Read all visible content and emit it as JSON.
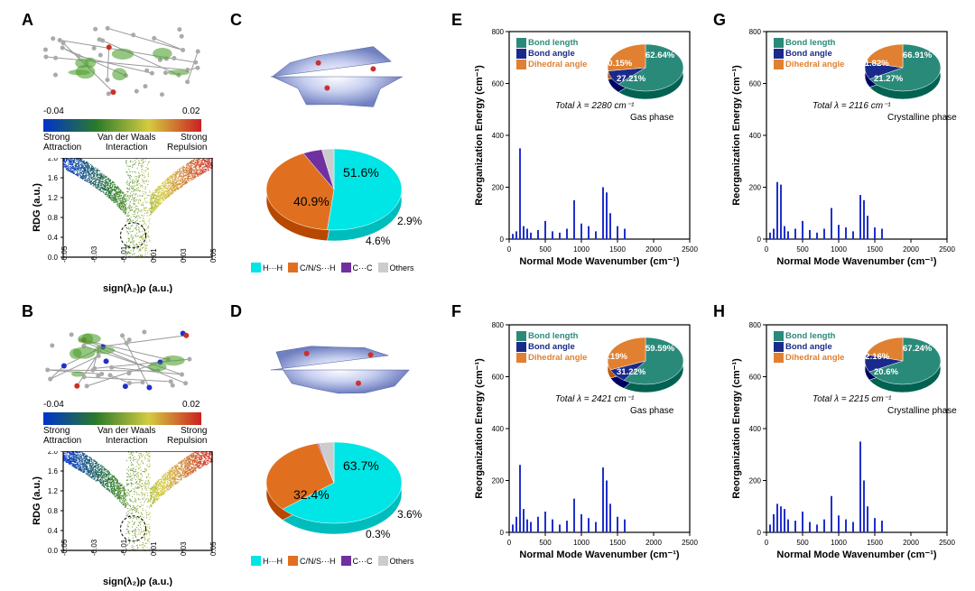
{
  "labels": {
    "A": "A",
    "B": "B",
    "C": "C",
    "D": "D",
    "E": "E",
    "F": "F",
    "G": "G",
    "H": "H"
  },
  "panelAB": {
    "colorbar_min": "-0.04",
    "colorbar_max": "0.02",
    "cb_l": "Strong\nAttraction",
    "cb_m": "Van der Waals\nInteraction",
    "cb_r": "Strong\nRepulsion",
    "y_label": "RDG (a.u.)",
    "x_label": "sign(λ₂)ρ (a.u.)",
    "x_ticks": [
      "-0.05",
      "-0.03",
      "-0.01",
      "0.01",
      "0.03",
      "0.05"
    ],
    "y_ticks": [
      "0.0",
      "0.4",
      "0.8",
      "1.2",
      "1.6",
      "2.0"
    ],
    "ylim": [
      0,
      2.0
    ],
    "xlim": [
      -0.05,
      0.05
    ]
  },
  "panelC": {
    "slices": [
      {
        "pct": 51.6,
        "color": "#00e5e5",
        "label": "H···H"
      },
      {
        "pct": 40.9,
        "color": "#e07020",
        "label": "C/N/S···H"
      },
      {
        "pct": 4.6,
        "color": "#7030a0",
        "label": "C···C"
      },
      {
        "pct": 2.9,
        "color": "#cccccc",
        "label": "Others"
      }
    ],
    "labels_shown": [
      "51.6%",
      "40.9%",
      "4.6%",
      "2.9%"
    ]
  },
  "panelD": {
    "slices": [
      {
        "pct": 63.7,
        "color": "#00e5e5",
        "label": "H···H"
      },
      {
        "pct": 32.4,
        "color": "#e07020",
        "label": "C/N/S···H"
      },
      {
        "pct": 0.3,
        "color": "#7030a0",
        "label": "C···C"
      },
      {
        "pct": 3.6,
        "color": "#cccccc",
        "label": "Others"
      }
    ],
    "labels_shown": [
      "63.7%",
      "32.4%",
      "0.3%",
      "3.6%"
    ]
  },
  "contact_legend": [
    {
      "color": "#00e5e5",
      "label": "H···H"
    },
    {
      "color": "#e07020",
      "label": "C/N/S···H"
    },
    {
      "color": "#7030a0",
      "label": "C···C"
    },
    {
      "color": "#cccccc",
      "label": "Others"
    }
  ],
  "reorg_axes": {
    "x_label": "Normal Mode Wavenumber (cm⁻¹)",
    "y_label": "Reorganization Energy (cm⁻¹)",
    "x_ticks": [
      "0",
      "500",
      "1000",
      "1500",
      "2000",
      "2500"
    ],
    "y_ticks": [
      "0",
      "200",
      "400",
      "600",
      "800"
    ],
    "xlim": [
      0,
      2500
    ],
    "ylim": [
      0,
      800
    ]
  },
  "reorg_legend": [
    {
      "color": "#2a8a7a",
      "label": "Bond length"
    },
    {
      "color": "#1a2a8a",
      "label": "Bond angle"
    },
    {
      "color": "#e08030",
      "label": "Dihedral angle"
    }
  ],
  "panelE": {
    "phase": "Gas phase",
    "total": "Total λ = 2280 cm⁻¹",
    "pie": {
      "bond_length": 62.64,
      "bond_angle": 10.15,
      "dihedral": 27.21
    },
    "pie_labels": {
      "bl": "62.64%",
      "ba": "10.15%",
      "da": "27.21%"
    },
    "bars": [
      [
        50,
        20
      ],
      [
        100,
        30
      ],
      [
        150,
        350
      ],
      [
        200,
        50
      ],
      [
        250,
        40
      ],
      [
        300,
        25
      ],
      [
        400,
        35
      ],
      [
        500,
        70
      ],
      [
        600,
        30
      ],
      [
        700,
        25
      ],
      [
        800,
        40
      ],
      [
        900,
        150
      ],
      [
        1000,
        60
      ],
      [
        1100,
        50
      ],
      [
        1200,
        30
      ],
      [
        1300,
        200
      ],
      [
        1350,
        180
      ],
      [
        1400,
        100
      ],
      [
        1500,
        50
      ],
      [
        1600,
        40
      ]
    ]
  },
  "panelF": {
    "phase": "Gas phase",
    "total": "Total λ = 2421 cm⁻¹",
    "pie": {
      "bond_length": 59.59,
      "bond_angle": 9.19,
      "dihedral": 31.22
    },
    "pie_labels": {
      "bl": "59.59%",
      "ba": "9.19%",
      "da": "31.22%"
    },
    "bars": [
      [
        50,
        30
      ],
      [
        100,
        60
      ],
      [
        150,
        260
      ],
      [
        200,
        90
      ],
      [
        250,
        50
      ],
      [
        300,
        40
      ],
      [
        400,
        60
      ],
      [
        500,
        80
      ],
      [
        600,
        50
      ],
      [
        700,
        30
      ],
      [
        800,
        45
      ],
      [
        900,
        130
      ],
      [
        1000,
        70
      ],
      [
        1100,
        55
      ],
      [
        1200,
        40
      ],
      [
        1300,
        250
      ],
      [
        1350,
        200
      ],
      [
        1400,
        110
      ],
      [
        1500,
        60
      ],
      [
        1600,
        50
      ]
    ]
  },
  "panelG": {
    "phase": "Crystalline phase",
    "total": "Total λ = 2116 cm⁻¹",
    "pie": {
      "bond_length": 66.91,
      "bond_angle": 11.82,
      "dihedral": 21.27
    },
    "pie_labels": {
      "bl": "66.91%",
      "ba": "11.82%",
      "da": "21.27%"
    },
    "bars": [
      [
        50,
        25
      ],
      [
        100,
        40
      ],
      [
        150,
        220
      ],
      [
        200,
        210
      ],
      [
        250,
        50
      ],
      [
        300,
        30
      ],
      [
        400,
        40
      ],
      [
        500,
        70
      ],
      [
        600,
        35
      ],
      [
        700,
        25
      ],
      [
        800,
        40
      ],
      [
        900,
        120
      ],
      [
        1000,
        55
      ],
      [
        1100,
        45
      ],
      [
        1200,
        30
      ],
      [
        1300,
        170
      ],
      [
        1350,
        150
      ],
      [
        1400,
        90
      ],
      [
        1500,
        45
      ],
      [
        1600,
        40
      ]
    ]
  },
  "panelH": {
    "phase": "Crystalline phase",
    "total": "Total λ = 2215 cm⁻¹",
    "pie": {
      "bond_length": 67.24,
      "bond_angle": 12.16,
      "dihedral": 20.6
    },
    "pie_labels": {
      "bl": "67.24%",
      "ba": "12.16%",
      "da": "20.6%"
    },
    "bars": [
      [
        50,
        30
      ],
      [
        100,
        70
      ],
      [
        150,
        110
      ],
      [
        200,
        100
      ],
      [
        250,
        90
      ],
      [
        300,
        50
      ],
      [
        400,
        45
      ],
      [
        500,
        80
      ],
      [
        600,
        40
      ],
      [
        700,
        30
      ],
      [
        800,
        50
      ],
      [
        900,
        140
      ],
      [
        1000,
        65
      ],
      [
        1100,
        50
      ],
      [
        1200,
        40
      ],
      [
        1300,
        350
      ],
      [
        1350,
        200
      ],
      [
        1400,
        100
      ],
      [
        1500,
        55
      ],
      [
        1600,
        45
      ]
    ]
  },
  "bar_color": "#2030cc"
}
